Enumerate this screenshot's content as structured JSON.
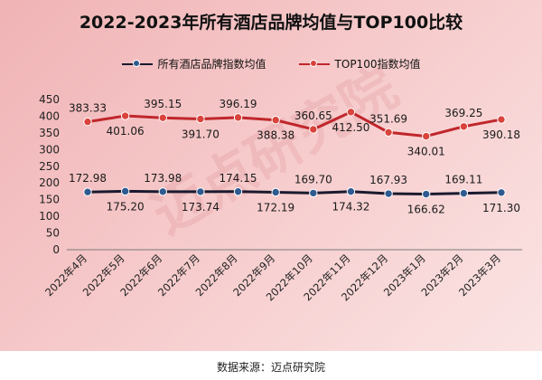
{
  "title": "2022-2023年所有酒店品牌均值与TOP100比较",
  "source_label": "数据来源：迈点研究院",
  "watermark_text": "迈点研究院",
  "colors": {
    "series_all": "#1a1a2e",
    "series_all_marker": "#2f5a8f",
    "series_top": "#c0262b",
    "series_top_marker": "#d9433b",
    "background_start": "#f0b3b5",
    "background_end": "#fbe4e4"
  },
  "chart_data": {
    "type": "line",
    "title": "2022-2023年所有酒店品牌均值与TOP100比较",
    "xlabel": "",
    "ylabel": "",
    "ylim": [
      0,
      450
    ],
    "yticks": [
      0,
      50,
      100,
      150,
      200,
      250,
      300,
      350,
      400,
      450
    ],
    "grid": false,
    "legend_position": "top",
    "categories": [
      "2022年4月",
      "2022年5月",
      "2022年6月",
      "2022年7月",
      "2022年8月",
      "2022年9月",
      "2022年10月",
      "2022年11月",
      "2022年12月",
      "2023年1月",
      "2023年2月",
      "2023年3月"
    ],
    "series": [
      {
        "name": "所有酒店品牌指数均值",
        "values": [
          172.98,
          175.2,
          173.98,
          173.74,
          174.15,
          172.19,
          169.7,
          174.32,
          167.93,
          166.62,
          169.11,
          171.3
        ],
        "labels": [
          "172.98",
          "175.20",
          "173.98",
          "173.74",
          "174.15",
          "172.19",
          "169.70",
          "174.32",
          "167.93",
          "166.62",
          "169.11",
          "171.30"
        ],
        "label_side": [
          "above",
          "below",
          "above",
          "below",
          "above",
          "below",
          "above",
          "below",
          "above",
          "below",
          "above",
          "below"
        ]
      },
      {
        "name": "TOP100指数均值",
        "values": [
          383.33,
          401.06,
          395.15,
          391.7,
          396.19,
          388.38,
          360.65,
          412.5,
          351.69,
          340.01,
          369.25,
          390.18
        ],
        "labels": [
          "383.33",
          "401.06",
          "395.15",
          "391.70",
          "396.19",
          "388.38",
          "360.65",
          "412.50",
          "351.69",
          "340.01",
          "369.25",
          "390.18"
        ],
        "label_side": [
          "above",
          "below",
          "above",
          "below",
          "above",
          "below",
          "above",
          "below",
          "above",
          "below",
          "above",
          "below"
        ]
      }
    ]
  }
}
